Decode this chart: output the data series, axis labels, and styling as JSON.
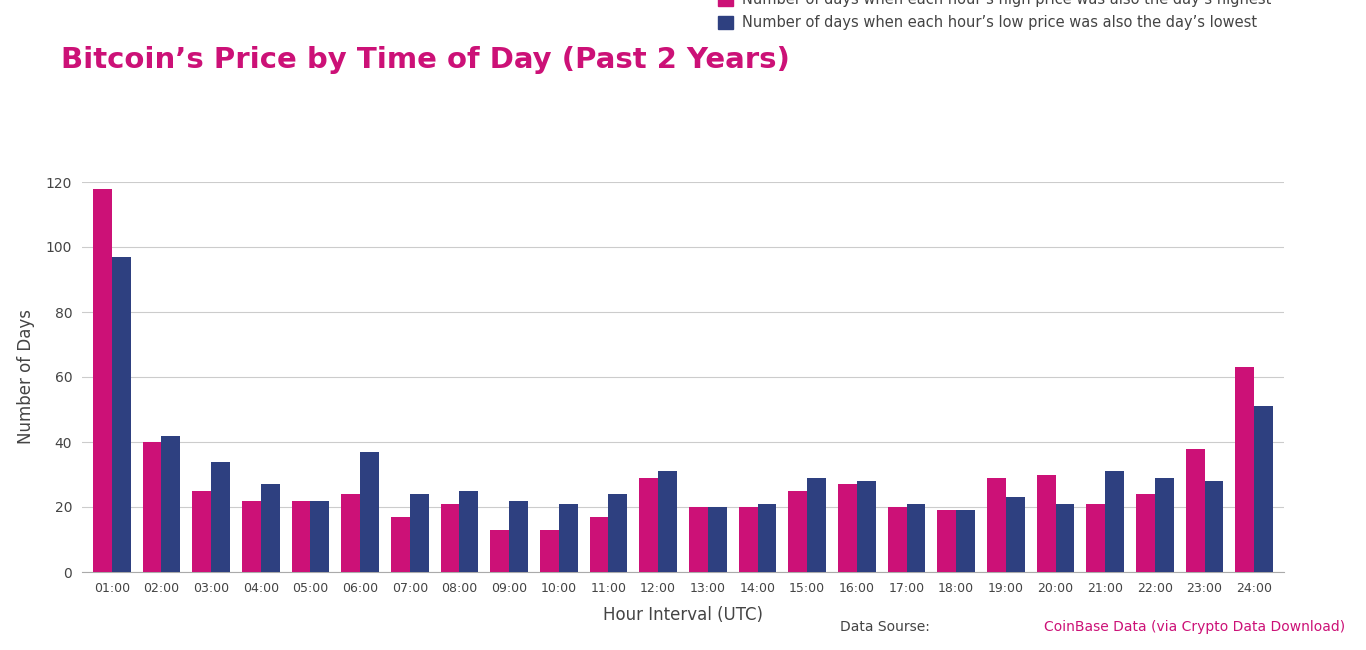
{
  "title": "Bitcoin’s Price by Time of Day (Past 2 Years)",
  "xlabel": "Hour Interval (UTC)",
  "ylabel": "Number of Days",
  "hours": [
    "01:00",
    "02:00",
    "03:00",
    "04:00",
    "05:00",
    "06:00",
    "07:00",
    "08:00",
    "09:00",
    "10:00",
    "11:00",
    "12:00",
    "13:00",
    "14:00",
    "15:00",
    "16:00",
    "17:00",
    "18:00",
    "19:00",
    "20:00",
    "21:00",
    "22:00",
    "23:00",
    "24:00"
  ],
  "high_values": [
    118,
    40,
    25,
    22,
    22,
    24,
    17,
    21,
    13,
    13,
    17,
    29,
    20,
    20,
    25,
    27,
    20,
    19,
    29,
    30,
    21,
    24,
    38,
    63
  ],
  "low_values": [
    97,
    42,
    34,
    27,
    22,
    37,
    24,
    25,
    22,
    21,
    24,
    31,
    20,
    21,
    29,
    28,
    21,
    19,
    23,
    21,
    31,
    29,
    28,
    51
  ],
  "high_color": "#CC1177",
  "low_color": "#2E4080",
  "background_color": "#ffffff",
  "grid_color": "#cccccc",
  "ylim": [
    0,
    120
  ],
  "yticks": [
    0,
    20,
    40,
    60,
    80,
    100,
    120
  ],
  "legend_high": "Number of days when each hour’s high price was also the day’s highest",
  "legend_low": "Number of days when each hour’s low price was also the day’s lowest",
  "source_label": "Data Sourse:",
  "source_link": "CoinBase Data (via Crypto Data Download)",
  "title_color": "#CC1177",
  "axis_label_color": "#444444",
  "source_color": "#CC1177",
  "source_label_color": "#444444",
  "bar_width": 0.38
}
